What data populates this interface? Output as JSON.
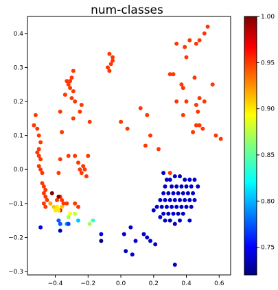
{
  "chart_data": {
    "type": "scatter",
    "title": "num-classes",
    "xlabel": "",
    "ylabel": "",
    "xlim": [
      -0.57,
      0.67
    ],
    "ylim": [
      -0.31,
      0.45
    ],
    "x_ticks": [
      -0.4,
      -0.2,
      0.0,
      0.2,
      0.4,
      0.6
    ],
    "x_tick_labels": [
      "−0.4",
      "−0.2",
      "0.0",
      "0.2",
      "0.4",
      "0.6"
    ],
    "y_ticks": [
      -0.3,
      -0.2,
      -0.1,
      0.0,
      0.1,
      0.2,
      0.3,
      0.4
    ],
    "y_tick_labels": [
      "−0.3",
      "−0.2",
      "−0.1",
      "0.0",
      "0.1",
      "0.2",
      "0.3",
      "0.4"
    ],
    "grid": false,
    "colormap": "jet",
    "colorbar": {
      "vmin": 0.72,
      "vmax": 1.0,
      "ticks": [
        0.75,
        0.8,
        0.85,
        0.9,
        0.95,
        1.0
      ],
      "tick_labels": [
        "0.75",
        "0.80",
        "0.85",
        "0.90",
        "0.95",
        "1.00"
      ]
    },
    "points": [
      {
        "x": 0.53,
        "y": 0.42,
        "v": 0.95
      },
      {
        "x": 0.51,
        "y": 0.4,
        "v": 0.95
      },
      {
        "x": 0.46,
        "y": 0.37,
        "v": 0.95
      },
      {
        "x": 0.42,
        "y": 0.38,
        "v": 0.95
      },
      {
        "x": 0.39,
        "y": 0.36,
        "v": 0.95
      },
      {
        "x": 0.34,
        "y": 0.37,
        "v": 0.95
      },
      {
        "x": 0.48,
        "y": 0.38,
        "v": 0.95
      },
      {
        "x": 0.4,
        "y": 0.33,
        "v": 0.95
      },
      {
        "x": 0.3,
        "y": 0.28,
        "v": 0.95
      },
      {
        "x": 0.37,
        "y": 0.25,
        "v": 0.95
      },
      {
        "x": 0.38,
        "y": 0.24,
        "v": 0.95
      },
      {
        "x": 0.45,
        "y": 0.27,
        "v": 0.95
      },
      {
        "x": 0.32,
        "y": 0.28,
        "v": 0.95
      },
      {
        "x": 0.48,
        "y": 0.21,
        "v": 0.95
      },
      {
        "x": 0.51,
        "y": 0.2,
        "v": 0.95
      },
      {
        "x": 0.56,
        "y": 0.25,
        "v": 0.95
      },
      {
        "x": 0.46,
        "y": 0.19,
        "v": 0.95
      },
      {
        "x": 0.4,
        "y": 0.2,
        "v": 0.95
      },
      {
        "x": 0.34,
        "y": 0.2,
        "v": 0.95
      },
      {
        "x": 0.38,
        "y": 0.16,
        "v": 0.95
      },
      {
        "x": 0.47,
        "y": 0.17,
        "v": 0.95
      },
      {
        "x": 0.46,
        "y": 0.13,
        "v": 0.95
      },
      {
        "x": 0.5,
        "y": 0.12,
        "v": 0.95
      },
      {
        "x": 0.48,
        "y": 0.13,
        "v": 0.95
      },
      {
        "x": 0.44,
        "y": 0.11,
        "v": 0.95
      },
      {
        "x": 0.58,
        "y": 0.1,
        "v": 0.95
      },
      {
        "x": 0.61,
        "y": 0.09,
        "v": 0.95
      },
      {
        "x": 0.12,
        "y": 0.18,
        "v": 0.95
      },
      {
        "x": 0.16,
        "y": 0.16,
        "v": 0.95
      },
      {
        "x": 0.04,
        "y": 0.12,
        "v": 0.95
      },
      {
        "x": 0.0,
        "y": 0.14,
        "v": 0.95
      },
      {
        "x": 0.18,
        "y": 0.1,
        "v": 0.95
      },
      {
        "x": 0.15,
        "y": 0.07,
        "v": 0.95
      },
      {
        "x": 0.23,
        "y": 0.06,
        "v": 0.95
      },
      {
        "x": -0.07,
        "y": 0.34,
        "v": 0.95
      },
      {
        "x": -0.07,
        "y": 0.29,
        "v": 0.95
      },
      {
        "x": -0.08,
        "y": 0.3,
        "v": 0.95
      },
      {
        "x": -0.06,
        "y": 0.31,
        "v": 0.95
      },
      {
        "x": -0.05,
        "y": 0.32,
        "v": 0.95
      },
      {
        "x": -0.05,
        "y": 0.33,
        "v": 0.95
      },
      {
        "x": -0.29,
        "y": 0.29,
        "v": 0.95
      },
      {
        "x": -0.3,
        "y": 0.27,
        "v": 0.95
      },
      {
        "x": -0.31,
        "y": 0.26,
        "v": 0.95
      },
      {
        "x": -0.32,
        "y": 0.25,
        "v": 0.95
      },
      {
        "x": -0.33,
        "y": 0.26,
        "v": 0.95
      },
      {
        "x": -0.34,
        "y": 0.22,
        "v": 0.95
      },
      {
        "x": -0.3,
        "y": 0.21,
        "v": 0.95
      },
      {
        "x": -0.29,
        "y": 0.23,
        "v": 0.95
      },
      {
        "x": -0.31,
        "y": 0.24,
        "v": 0.95
      },
      {
        "x": -0.28,
        "y": 0.2,
        "v": 0.95
      },
      {
        "x": -0.25,
        "y": 0.17,
        "v": 0.95
      },
      {
        "x": -0.24,
        "y": 0.19,
        "v": 0.95
      },
      {
        "x": -0.37,
        "y": 0.17,
        "v": 0.95
      },
      {
        "x": -0.36,
        "y": 0.11,
        "v": 0.95
      },
      {
        "x": -0.29,
        "y": 0.15,
        "v": 0.95
      },
      {
        "x": -0.19,
        "y": 0.14,
        "v": 0.95
      },
      {
        "x": -0.2,
        "y": 0.04,
        "v": 0.95
      },
      {
        "x": -0.28,
        "y": 0.04,
        "v": 0.95
      },
      {
        "x": -0.26,
        "y": 0.02,
        "v": 0.95
      },
      {
        "x": -0.25,
        "y": 0.0,
        "v": 0.95
      },
      {
        "x": -0.23,
        "y": 0.01,
        "v": 0.95
      },
      {
        "x": -0.22,
        "y": 0.0,
        "v": 0.95
      },
      {
        "x": -0.24,
        "y": -0.01,
        "v": 0.95
      },
      {
        "x": -0.21,
        "y": -0.02,
        "v": 0.95
      },
      {
        "x": -0.32,
        "y": 0.04,
        "v": 0.95
      },
      {
        "x": -0.37,
        "y": 0.03,
        "v": 0.95
      },
      {
        "x": -0.38,
        "y": -0.01,
        "v": 0.95
      },
      {
        "x": -0.52,
        "y": 0.16,
        "v": 0.95
      },
      {
        "x": -0.53,
        "y": 0.13,
        "v": 0.95
      },
      {
        "x": -0.51,
        "y": 0.12,
        "v": 0.95
      },
      {
        "x": -0.5,
        "y": 0.1,
        "v": 0.95
      },
      {
        "x": -0.49,
        "y": 0.08,
        "v": 0.95
      },
      {
        "x": -0.5,
        "y": 0.06,
        "v": 0.95
      },
      {
        "x": -0.51,
        "y": 0.05,
        "v": 0.95
      },
      {
        "x": -0.5,
        "y": 0.04,
        "v": 0.95
      },
      {
        "x": -0.49,
        "y": 0.03,
        "v": 0.95
      },
      {
        "x": -0.5,
        "y": 0.01,
        "v": 0.95
      },
      {
        "x": -0.49,
        "y": 0.0,
        "v": 0.95
      },
      {
        "x": -0.48,
        "y": -0.01,
        "v": 0.95
      },
      {
        "x": -0.48,
        "y": -0.04,
        "v": 0.95
      },
      {
        "x": -0.47,
        "y": -0.05,
        "v": 0.95
      },
      {
        "x": -0.46,
        "y": -0.06,
        "v": 0.95
      },
      {
        "x": -0.47,
        "y": -0.07,
        "v": 0.95
      },
      {
        "x": -0.46,
        "y": -0.08,
        "v": 0.95
      },
      {
        "x": -0.45,
        "y": -0.09,
        "v": 0.95
      },
      {
        "x": -0.47,
        "y": -0.1,
        "v": 0.95
      },
      {
        "x": -0.46,
        "y": -0.11,
        "v": 0.95
      },
      {
        "x": -0.37,
        "y": -0.08,
        "v": 0.95
      },
      {
        "x": -0.36,
        "y": -0.09,
        "v": 0.95
      },
      {
        "x": -0.35,
        "y": -0.1,
        "v": 0.95
      },
      {
        "x": -0.33,
        "y": -0.1,
        "v": 0.95
      },
      {
        "x": -0.28,
        "y": -0.1,
        "v": 0.95
      },
      {
        "x": -0.26,
        "y": -0.11,
        "v": 0.95
      },
      {
        "x": -0.39,
        "y": -0.09,
        "v": 0.95
      },
      {
        "x": 0.3,
        "y": -0.01,
        "v": 0.95
      },
      {
        "x": -0.42,
        "y": -0.07,
        "v": 1.0
      },
      {
        "x": -0.38,
        "y": -0.08,
        "v": 1.0
      },
      {
        "x": -0.37,
        "y": -0.12,
        "v": 0.97
      },
      {
        "x": -0.43,
        "y": -0.1,
        "v": 0.92
      },
      {
        "x": -0.41,
        "y": -0.11,
        "v": 0.91
      },
      {
        "x": -0.4,
        "y": -0.12,
        "v": 0.9
      },
      {
        "x": -0.39,
        "y": -0.11,
        "v": 0.9
      },
      {
        "x": -0.38,
        "y": -0.12,
        "v": 0.9
      },
      {
        "x": -0.36,
        "y": -0.11,
        "v": 0.91
      },
      {
        "x": -0.32,
        "y": -0.14,
        "v": 0.87
      },
      {
        "x": -0.31,
        "y": -0.13,
        "v": 0.89
      },
      {
        "x": -0.28,
        "y": -0.13,
        "v": 0.88
      },
      {
        "x": -0.19,
        "y": -0.16,
        "v": 0.87
      },
      {
        "x": -0.17,
        "y": -0.15,
        "v": 0.84
      },
      {
        "x": -0.26,
        "y": -0.15,
        "v": 0.81
      },
      {
        "x": -0.33,
        "y": -0.16,
        "v": 0.8
      },
      {
        "x": -0.38,
        "y": -0.15,
        "v": 0.78
      },
      {
        "x": -0.37,
        "y": -0.16,
        "v": 0.78
      },
      {
        "x": -0.32,
        "y": -0.16,
        "v": 0.77
      },
      {
        "x": -0.49,
        "y": -0.17,
        "v": 0.75
      },
      {
        "x": -0.37,
        "y": -0.18,
        "v": 0.73
      },
      {
        "x": -0.12,
        "y": -0.19,
        "v": 0.75
      },
      {
        "x": -0.12,
        "y": -0.21,
        "v": 0.72
      },
      {
        "x": 0.26,
        "y": -0.01,
        "v": 0.74
      },
      {
        "x": 0.28,
        "y": -0.03,
        "v": 0.74
      },
      {
        "x": 0.3,
        "y": -0.03,
        "v": 0.74
      },
      {
        "x": 0.33,
        "y": -0.02,
        "v": 0.74
      },
      {
        "x": 0.36,
        "y": -0.02,
        "v": 0.74
      },
      {
        "x": 0.39,
        "y": -0.03,
        "v": 0.74
      },
      {
        "x": 0.42,
        "y": -0.03,
        "v": 0.74
      },
      {
        "x": 0.45,
        "y": -0.03,
        "v": 0.74
      },
      {
        "x": 0.27,
        "y": -0.05,
        "v": 0.74
      },
      {
        "x": 0.31,
        "y": -0.05,
        "v": 0.74
      },
      {
        "x": 0.34,
        "y": -0.05,
        "v": 0.74
      },
      {
        "x": 0.37,
        "y": -0.05,
        "v": 0.74
      },
      {
        "x": 0.4,
        "y": -0.05,
        "v": 0.74
      },
      {
        "x": 0.43,
        "y": -0.05,
        "v": 0.74
      },
      {
        "x": 0.47,
        "y": -0.05,
        "v": 0.74
      },
      {
        "x": 0.26,
        "y": -0.07,
        "v": 0.74
      },
      {
        "x": 0.29,
        "y": -0.07,
        "v": 0.74
      },
      {
        "x": 0.32,
        "y": -0.07,
        "v": 0.74
      },
      {
        "x": 0.35,
        "y": -0.07,
        "v": 0.74
      },
      {
        "x": 0.38,
        "y": -0.07,
        "v": 0.74
      },
      {
        "x": 0.41,
        "y": -0.07,
        "v": 0.74
      },
      {
        "x": 0.44,
        "y": -0.07,
        "v": 0.74
      },
      {
        "x": 0.24,
        "y": -0.09,
        "v": 0.74
      },
      {
        "x": 0.27,
        "y": -0.09,
        "v": 0.74
      },
      {
        "x": 0.3,
        "y": -0.09,
        "v": 0.74
      },
      {
        "x": 0.33,
        "y": -0.09,
        "v": 0.74
      },
      {
        "x": 0.36,
        "y": -0.09,
        "v": 0.74
      },
      {
        "x": 0.39,
        "y": -0.09,
        "v": 0.74
      },
      {
        "x": 0.42,
        "y": -0.09,
        "v": 0.74
      },
      {
        "x": 0.45,
        "y": -0.09,
        "v": 0.74
      },
      {
        "x": 0.22,
        "y": -0.11,
        "v": 0.74
      },
      {
        "x": 0.25,
        "y": -0.11,
        "v": 0.74
      },
      {
        "x": 0.28,
        "y": -0.11,
        "v": 0.74
      },
      {
        "x": 0.31,
        "y": -0.11,
        "v": 0.74
      },
      {
        "x": 0.34,
        "y": -0.11,
        "v": 0.74
      },
      {
        "x": 0.37,
        "y": -0.11,
        "v": 0.74
      },
      {
        "x": 0.4,
        "y": -0.11,
        "v": 0.74
      },
      {
        "x": 0.43,
        "y": -0.11,
        "v": 0.74
      },
      {
        "x": 0.2,
        "y": -0.12,
        "v": 0.74
      },
      {
        "x": 0.26,
        "y": -0.13,
        "v": 0.74
      },
      {
        "x": 0.29,
        "y": -0.13,
        "v": 0.74
      },
      {
        "x": 0.32,
        "y": -0.13,
        "v": 0.74
      },
      {
        "x": 0.35,
        "y": -0.13,
        "v": 0.74
      },
      {
        "x": 0.38,
        "y": -0.13,
        "v": 0.74
      },
      {
        "x": 0.24,
        "y": -0.14,
        "v": 0.74
      },
      {
        "x": 0.3,
        "y": -0.15,
        "v": 0.74
      },
      {
        "x": 0.36,
        "y": -0.15,
        "v": 0.74
      },
      {
        "x": 0.27,
        "y": -0.15,
        "v": 0.74
      },
      {
        "x": 0.33,
        "y": -0.16,
        "v": 0.74
      },
      {
        "x": 0.42,
        "y": -0.15,
        "v": 0.74
      },
      {
        "x": 0.06,
        "y": -0.17,
        "v": 0.74
      },
      {
        "x": 0.02,
        "y": -0.19,
        "v": 0.74
      },
      {
        "x": 0.14,
        "y": -0.19,
        "v": 0.74
      },
      {
        "x": 0.16,
        "y": -0.2,
        "v": 0.74
      },
      {
        "x": 0.09,
        "y": -0.21,
        "v": 0.74
      },
      {
        "x": 0.18,
        "y": -0.21,
        "v": 0.74
      },
      {
        "x": 0.21,
        "y": -0.22,
        "v": 0.74
      },
      {
        "x": 0.03,
        "y": -0.24,
        "v": 0.74
      },
      {
        "x": 0.07,
        "y": -0.25,
        "v": 0.74
      },
      {
        "x": 0.33,
        "y": -0.28,
        "v": 0.74
      }
    ]
  }
}
